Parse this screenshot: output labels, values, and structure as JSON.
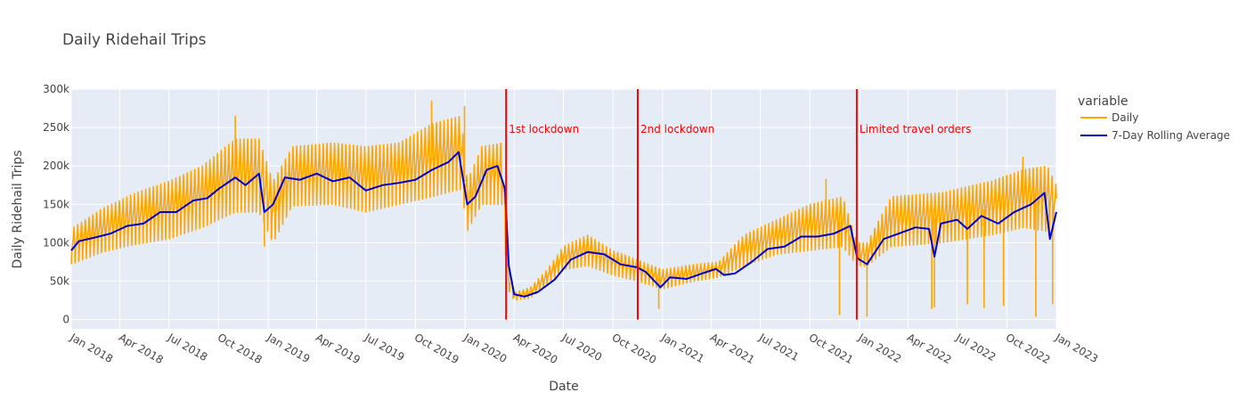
{
  "chart_data": {
    "type": "line",
    "title": "Daily Ridehail Trips",
    "xlabel": "Date",
    "ylabel": "Daily Ridehail Trips",
    "xlim": [
      "2018-01-01",
      "2023-01-01"
    ],
    "ylim": [
      -12000,
      300000
    ],
    "yticks": [
      0,
      50000,
      100000,
      150000,
      200000,
      250000,
      300000
    ],
    "ytick_labels": [
      "0",
      "50k",
      "100k",
      "150k",
      "200k",
      "250k",
      "300k"
    ],
    "xticks": [
      "2018-01-01",
      "2018-04-01",
      "2018-07-01",
      "2018-10-01",
      "2019-01-01",
      "2019-04-01",
      "2019-07-01",
      "2019-10-01",
      "2020-01-01",
      "2020-04-01",
      "2020-07-01",
      "2020-10-01",
      "2021-01-01",
      "2021-04-01",
      "2021-07-01",
      "2021-10-01",
      "2022-01-01",
      "2022-04-01",
      "2022-07-01",
      "2022-10-01",
      "2023-01-01"
    ],
    "xtick_labels": [
      "Jan 2018",
      "Apr 2018",
      "Jul 2018",
      "Oct 2018",
      "Jan 2019",
      "Apr 2019",
      "Jul 2019",
      "Oct 2019",
      "Jan 2020",
      "Apr 2020",
      "Jul 2020",
      "Oct 2020",
      "Jan 2021",
      "Apr 2021",
      "Jul 2021",
      "Oct 2021",
      "Jan 2022",
      "Apr 2022",
      "Jul 2022",
      "Oct 2022",
      "Jan 2023"
    ],
    "grid": true,
    "legend": {
      "title": "variable",
      "position": "right"
    },
    "series": [
      {
        "name": "Daily",
        "color": "#ffa500",
        "weekly_range_points": [
          {
            "x": "2018-01-01",
            "low": 72000,
            "high": 118000
          },
          {
            "x": "2018-03-01",
            "low": 88000,
            "high": 145000
          },
          {
            "x": "2018-05-01",
            "low": 98000,
            "high": 165000
          },
          {
            "x": "2018-07-01",
            "low": 105000,
            "high": 180000
          },
          {
            "x": "2018-09-01",
            "low": 120000,
            "high": 200000
          },
          {
            "x": "2018-11-01",
            "low": 140000,
            "high": 235000
          },
          {
            "x": "2018-12-15",
            "low": 140000,
            "high": 235000
          },
          {
            "x": "2019-01-10",
            "low": 100000,
            "high": 180000
          },
          {
            "x": "2019-02-15",
            "low": 148000,
            "high": 225000
          },
          {
            "x": "2019-05-01",
            "low": 150000,
            "high": 230000
          },
          {
            "x": "2019-07-01",
            "low": 140000,
            "high": 225000
          },
          {
            "x": "2019-09-01",
            "low": 150000,
            "high": 230000
          },
          {
            "x": "2019-11-01",
            "low": 160000,
            "high": 255000
          },
          {
            "x": "2019-12-25",
            "low": 170000,
            "high": 265000
          },
          {
            "x": "2020-01-05",
            "low": 115000,
            "high": 180000
          },
          {
            "x": "2020-02-01",
            "low": 150000,
            "high": 225000
          },
          {
            "x": "2020-03-10",
            "low": 150000,
            "high": 230000
          },
          {
            "x": "2020-03-20",
            "low": 40000,
            "high": 80000
          },
          {
            "x": "2020-04-01",
            "low": 25000,
            "high": 35000
          },
          {
            "x": "2020-05-01",
            "low": 28000,
            "high": 42000
          },
          {
            "x": "2020-06-01",
            "low": 45000,
            "high": 65000
          },
          {
            "x": "2020-07-01",
            "low": 65000,
            "high": 95000
          },
          {
            "x": "2020-08-15",
            "low": 70000,
            "high": 110000
          },
          {
            "x": "2020-10-01",
            "low": 58000,
            "high": 90000
          },
          {
            "x": "2020-11-15",
            "low": 50000,
            "high": 78000
          },
          {
            "x": "2021-01-01",
            "low": 40000,
            "high": 65000
          },
          {
            "x": "2021-03-01",
            "low": 50000,
            "high": 72000
          },
          {
            "x": "2021-04-15",
            "low": 55000,
            "high": 75000
          },
          {
            "x": "2021-06-01",
            "low": 70000,
            "high": 110000
          },
          {
            "x": "2021-08-01",
            "low": 85000,
            "high": 130000
          },
          {
            "x": "2021-10-01",
            "low": 90000,
            "high": 150000
          },
          {
            "x": "2021-12-01",
            "low": 95000,
            "high": 160000
          },
          {
            "x": "2021-12-28",
            "low": 70000,
            "high": 100000
          },
          {
            "x": "2022-01-15",
            "low": 70000,
            "high": 100000
          },
          {
            "x": "2022-03-01",
            "low": 95000,
            "high": 160000
          },
          {
            "x": "2022-06-01",
            "low": 100000,
            "high": 165000
          },
          {
            "x": "2022-09-01",
            "low": 110000,
            "high": 180000
          },
          {
            "x": "2022-11-01",
            "low": 120000,
            "high": 195000
          },
          {
            "x": "2022-12-15",
            "low": 115000,
            "high": 200000
          },
          {
            "x": "2023-01-01",
            "low": 115000,
            "high": 175000
          }
        ],
        "spikes": [
          {
            "x": "2018-11-01",
            "y": 265000
          },
          {
            "x": "2019-10-31",
            "y": 285000
          },
          {
            "x": "2019-12-31",
            "y": 278000
          },
          {
            "x": "2021-10-31",
            "y": 183000
          },
          {
            "x": "2022-10-31",
            "y": 212000
          },
          {
            "x": "2018-12-25",
            "y": 95000
          },
          {
            "x": "2020-12-25",
            "y": 14000
          },
          {
            "x": "2021-11-25",
            "y": 6000
          },
          {
            "x": "2021-12-31",
            "y": 76000
          },
          {
            "x": "2022-01-15",
            "y": 4000
          },
          {
            "x": "2022-05-15",
            "y": 14000
          },
          {
            "x": "2022-05-20",
            "y": 16000
          },
          {
            "x": "2022-07-20",
            "y": 20000
          },
          {
            "x": "2022-08-20",
            "y": 15000
          },
          {
            "x": "2022-09-25",
            "y": 18000
          },
          {
            "x": "2022-11-24",
            "y": 4000
          },
          {
            "x": "2022-12-25",
            "y": 20000
          }
        ]
      },
      {
        "name": "7-Day Rolling Average",
        "color": "#0000cd",
        "points": [
          {
            "x": "2018-01-01",
            "y": 90000
          },
          {
            "x": "2018-01-15",
            "y": 102000
          },
          {
            "x": "2018-02-15",
            "y": 107000
          },
          {
            "x": "2018-03-15",
            "y": 112000
          },
          {
            "x": "2018-04-15",
            "y": 122000
          },
          {
            "x": "2018-05-15",
            "y": 125000
          },
          {
            "x": "2018-06-15",
            "y": 140000
          },
          {
            "x": "2018-07-15",
            "y": 140000
          },
          {
            "x": "2018-08-15",
            "y": 155000
          },
          {
            "x": "2018-09-10",
            "y": 158000
          },
          {
            "x": "2018-10-01",
            "y": 170000
          },
          {
            "x": "2018-11-01",
            "y": 185000
          },
          {
            "x": "2018-11-20",
            "y": 175000
          },
          {
            "x": "2018-12-15",
            "y": 190000
          },
          {
            "x": "2018-12-25",
            "y": 140000
          },
          {
            "x": "2019-01-10",
            "y": 150000
          },
          {
            "x": "2019-02-01",
            "y": 185000
          },
          {
            "x": "2019-03-01",
            "y": 182000
          },
          {
            "x": "2019-04-01",
            "y": 190000
          },
          {
            "x": "2019-05-01",
            "y": 180000
          },
          {
            "x": "2019-06-01",
            "y": 185000
          },
          {
            "x": "2019-07-01",
            "y": 168000
          },
          {
            "x": "2019-08-01",
            "y": 175000
          },
          {
            "x": "2019-09-01",
            "y": 178000
          },
          {
            "x": "2019-10-01",
            "y": 182000
          },
          {
            "x": "2019-11-01",
            "y": 195000
          },
          {
            "x": "2019-12-01",
            "y": 205000
          },
          {
            "x": "2019-12-20",
            "y": 218000
          },
          {
            "x": "2020-01-05",
            "y": 150000
          },
          {
            "x": "2020-01-20",
            "y": 160000
          },
          {
            "x": "2020-02-10",
            "y": 195000
          },
          {
            "x": "2020-03-01",
            "y": 200000
          },
          {
            "x": "2020-03-15",
            "y": 170000
          },
          {
            "x": "2020-03-22",
            "y": 70000
          },
          {
            "x": "2020-04-01",
            "y": 33000
          },
          {
            "x": "2020-04-20",
            "y": 30000
          },
          {
            "x": "2020-05-15",
            "y": 36000
          },
          {
            "x": "2020-06-15",
            "y": 52000
          },
          {
            "x": "2020-07-15",
            "y": 78000
          },
          {
            "x": "2020-08-15",
            "y": 88000
          },
          {
            "x": "2020-09-15",
            "y": 85000
          },
          {
            "x": "2020-10-15",
            "y": 72000
          },
          {
            "x": "2020-11-15",
            "y": 68000
          },
          {
            "x": "2020-12-01",
            "y": 62000
          },
          {
            "x": "2020-12-28",
            "y": 42000
          },
          {
            "x": "2021-01-15",
            "y": 55000
          },
          {
            "x": "2021-02-15",
            "y": 53000
          },
          {
            "x": "2021-03-15",
            "y": 60000
          },
          {
            "x": "2021-04-10",
            "y": 66000
          },
          {
            "x": "2021-04-25",
            "y": 58000
          },
          {
            "x": "2021-05-15",
            "y": 60000
          },
          {
            "x": "2021-06-15",
            "y": 75000
          },
          {
            "x": "2021-07-15",
            "y": 92000
          },
          {
            "x": "2021-08-15",
            "y": 95000
          },
          {
            "x": "2021-09-15",
            "y": 108000
          },
          {
            "x": "2021-10-15",
            "y": 108000
          },
          {
            "x": "2021-11-15",
            "y": 112000
          },
          {
            "x": "2021-12-15",
            "y": 122000
          },
          {
            "x": "2021-12-28",
            "y": 80000
          },
          {
            "x": "2022-01-15",
            "y": 72000
          },
          {
            "x": "2022-02-15",
            "y": 105000
          },
          {
            "x": "2022-03-15",
            "y": 112000
          },
          {
            "x": "2022-04-15",
            "y": 120000
          },
          {
            "x": "2022-05-10",
            "y": 118000
          },
          {
            "x": "2022-05-20",
            "y": 82000
          },
          {
            "x": "2022-06-01",
            "y": 125000
          },
          {
            "x": "2022-07-01",
            "y": 130000
          },
          {
            "x": "2022-07-20",
            "y": 118000
          },
          {
            "x": "2022-08-15",
            "y": 135000
          },
          {
            "x": "2022-09-15",
            "y": 125000
          },
          {
            "x": "2022-10-15",
            "y": 140000
          },
          {
            "x": "2022-11-15",
            "y": 150000
          },
          {
            "x": "2022-12-10",
            "y": 165000
          },
          {
            "x": "2022-12-20",
            "y": 105000
          },
          {
            "x": "2023-01-01",
            "y": 140000
          }
        ]
      }
    ],
    "annotations": [
      {
        "x": "2020-03-17",
        "text": "1st lockdown",
        "color": "#ff0000"
      },
      {
        "x": "2020-11-16",
        "text": "2nd lockdown",
        "color": "#ff0000"
      },
      {
        "x": "2021-12-27",
        "text": "Limited travel orders",
        "color": "#ff0000"
      }
    ]
  }
}
